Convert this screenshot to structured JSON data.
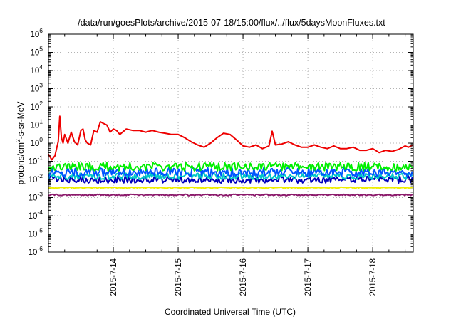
{
  "chart_data": {
    "type": "line",
    "title": "/data/run/goesPlots/archive/2015-07-18/15:00/flux/../flux/5daysMoonFluxes.txt",
    "xlabel": "Coordinated Universal Time (UTC)",
    "ylabel": {
      "base": "protons/cm",
      "exponent": "2",
      "rest": "-s-sr-MeV"
    },
    "x_ticks": [
      "2015-7-14",
      "2015-7-15",
      "2015-7-16",
      "2015-7-17",
      "2015-7-18"
    ],
    "y_ticks": [
      {
        "base": "10",
        "exp": "-6"
      },
      {
        "base": "10",
        "exp": "-5"
      },
      {
        "base": "10",
        "exp": "-4"
      },
      {
        "base": "10",
        "exp": "-3"
      },
      {
        "base": "10",
        "exp": "-2"
      },
      {
        "base": "10",
        "exp": "-1"
      },
      {
        "base": "10",
        "exp": "0"
      },
      {
        "base": "10",
        "exp": "1"
      },
      {
        "base": "10",
        "exp": "2"
      },
      {
        "base": "10",
        "exp": "3"
      },
      {
        "base": "10",
        "exp": "4"
      },
      {
        "base": "10",
        "exp": "5"
      },
      {
        "base": "10",
        "exp": "6"
      }
    ],
    "xlim": [
      "2015-07-13T00:00",
      "2015-07-18T15:00"
    ],
    "ylim": [
      1e-06,
      1000000.0
    ],
    "yscale": "log",
    "grid": true,
    "series": [
      {
        "color": "#ee0000",
        "points": [
          [
            "2015-07-13T00:00",
            0.25
          ],
          [
            "2015-07-13T01:12",
            0.12
          ],
          [
            "2015-07-13T02:24",
            0.2
          ],
          [
            "2015-07-13T03:00",
            0.5
          ],
          [
            "2015-07-13T03:36",
            1.2
          ],
          [
            "2015-07-13T04:12",
            30
          ],
          [
            "2015-07-13T04:48",
            2
          ],
          [
            "2015-07-13T05:24",
            1
          ],
          [
            "2015-07-13T06:00",
            3
          ],
          [
            "2015-07-13T07:12",
            1
          ],
          [
            "2015-07-13T08:24",
            4
          ],
          [
            "2015-07-13T09:36",
            1.2
          ],
          [
            "2015-07-13T10:48",
            0.8
          ],
          [
            "2015-07-13T12:00",
            5
          ],
          [
            "2015-07-13T12:48",
            6
          ],
          [
            "2015-07-13T13:36",
            1.5
          ],
          [
            "2015-07-13T14:24",
            1
          ],
          [
            "2015-07-13T15:36",
            0.8
          ],
          [
            "2015-07-13T16:48",
            5
          ],
          [
            "2015-07-13T18:00",
            4
          ],
          [
            "2015-07-13T19:12",
            15
          ],
          [
            "2015-07-13T20:24",
            12
          ],
          [
            "2015-07-13T21:36",
            10
          ],
          [
            "2015-07-13T22:48",
            4
          ],
          [
            "2015-07-14T00:00",
            6
          ],
          [
            "2015-07-14T01:12",
            5
          ],
          [
            "2015-07-14T02:24",
            3
          ],
          [
            "2015-07-14T04:48",
            6
          ],
          [
            "2015-07-14T07:12",
            5
          ],
          [
            "2015-07-14T09:36",
            5
          ],
          [
            "2015-07-14T12:00",
            4
          ],
          [
            "2015-07-14T14:24",
            5
          ],
          [
            "2015-07-14T16:48",
            4
          ],
          [
            "2015-07-14T19:12",
            3.5
          ],
          [
            "2015-07-14T21:36",
            3
          ],
          [
            "2015-07-15T00:00",
            3
          ],
          [
            "2015-07-15T02:24",
            2
          ],
          [
            "2015-07-15T04:48",
            1.2
          ],
          [
            "2015-07-15T07:12",
            0.8
          ],
          [
            "2015-07-15T09:36",
            0.6
          ],
          [
            "2015-07-15T12:00",
            1
          ],
          [
            "2015-07-15T14:24",
            2
          ],
          [
            "2015-07-15T16:48",
            3.5
          ],
          [
            "2015-07-15T19:12",
            3
          ],
          [
            "2015-07-15T21:36",
            1.5
          ],
          [
            "2015-07-16T00:00",
            0.7
          ],
          [
            "2015-07-16T02:24",
            0.6
          ],
          [
            "2015-07-16T04:48",
            0.8
          ],
          [
            "2015-07-16T07:12",
            0.5
          ],
          [
            "2015-07-16T09:36",
            0.7
          ],
          [
            "2015-07-16T10:48",
            4.5
          ],
          [
            "2015-07-16T12:00",
            0.8
          ],
          [
            "2015-07-16T14:24",
            0.9
          ],
          [
            "2015-07-16T16:48",
            1.2
          ],
          [
            "2015-07-16T19:12",
            0.8
          ],
          [
            "2015-07-16T21:36",
            0.6
          ],
          [
            "2015-07-17T00:00",
            0.6
          ],
          [
            "2015-07-17T02:24",
            0.8
          ],
          [
            "2015-07-17T04:48",
            0.6
          ],
          [
            "2015-07-17T07:12",
            0.5
          ],
          [
            "2015-07-17T09:36",
            0.7
          ],
          [
            "2015-07-17T12:00",
            0.5
          ],
          [
            "2015-07-17T14:24",
            0.5
          ],
          [
            "2015-07-17T16:48",
            0.6
          ],
          [
            "2015-07-17T19:12",
            0.4
          ],
          [
            "2015-07-17T21:36",
            0.4
          ],
          [
            "2015-07-18T00:00",
            0.5
          ],
          [
            "2015-07-18T02:24",
            0.3
          ],
          [
            "2015-07-18T04:48",
            0.4
          ],
          [
            "2015-07-18T07:12",
            0.35
          ],
          [
            "2015-07-18T09:36",
            0.45
          ],
          [
            "2015-07-18T12:00",
            0.7
          ],
          [
            "2015-07-18T13:12",
            0.6
          ],
          [
            "2015-07-18T15:00",
            0.8
          ]
        ]
      },
      {
        "color": "#00ee00",
        "level": 0.05,
        "spread": 0.45
      },
      {
        "color": "#0055ff",
        "level": 0.025,
        "spread": 0.5
      },
      {
        "color": "#00c8c8",
        "level": 0.015,
        "spread": 0.35
      },
      {
        "color": "#0000bb",
        "level": 0.01,
        "spread": 0.4
      },
      {
        "color": "#eeee00",
        "level": 0.0035,
        "spread": 0.06
      },
      {
        "color": "#8b1a6b",
        "level": 0.0014,
        "spread": 0.08
      }
    ]
  }
}
